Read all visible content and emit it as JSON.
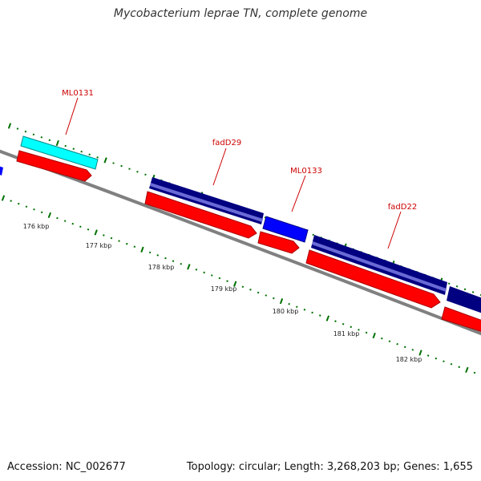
{
  "title": "Mycobacterium leprae TN, complete genome",
  "accession": "Accession: NC_002677",
  "summary": "Topology: circular; Length: 3,268,203 bp; Genes: 1,655",
  "colors": {
    "backbone": "#808080",
    "cds_forward": "#ff0000",
    "gene_dark": "#000080",
    "gene_blue": "#0000ff",
    "gene_cyan": "#00ffff",
    "label": "#cc0000",
    "tick": "#007000"
  },
  "features": [
    {
      "name": "ML0131",
      "labeled": true
    },
    {
      "name": "fadD29",
      "labeled": true
    },
    {
      "name": "ML0133",
      "labeled": true
    },
    {
      "name": "fadD22",
      "labeled": true
    }
  ],
  "scale_labels": [
    "176 kbp",
    "177 kbp",
    "178 kbp",
    "179 kbp",
    "180 kbp",
    "181 kbp",
    "182 kbp"
  ]
}
